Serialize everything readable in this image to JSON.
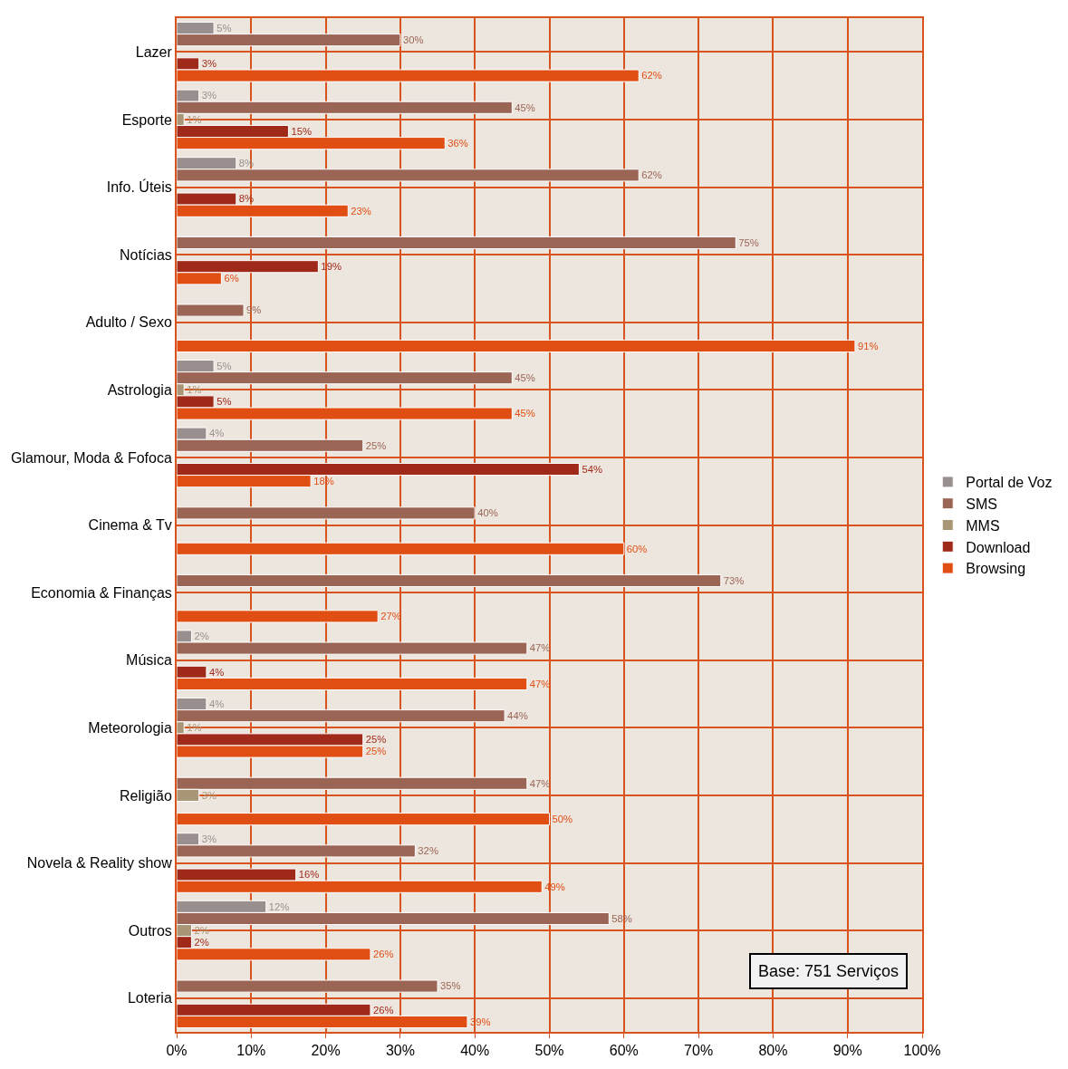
{
  "chart_data": {
    "type": "bar",
    "orientation": "horizontal",
    "categories": [
      "Lazer",
      "Esporte",
      "Info. Úteis",
      "Notícias",
      "Adulto / Sexo",
      "Astrologia",
      "Glamour, Moda & Fofoca",
      "Cinema & Tv",
      "Economia & Finanças",
      "Música",
      "Meteorologia",
      "Religião",
      "Novela & Reality show",
      "Outros",
      "Loteria"
    ],
    "series": [
      {
        "name": "Portal de Voz",
        "color": "#9a8f8f",
        "values": [
          5,
          3,
          8,
          null,
          null,
          5,
          4,
          null,
          null,
          2,
          4,
          null,
          3,
          12,
          null
        ],
        "value_labels": [
          "5%",
          "3%",
          "8%",
          null,
          null,
          "5%",
          "4%",
          null,
          null,
          "2%",
          "4%",
          null,
          "3%",
          "12%",
          null
        ]
      },
      {
        "name": "SMS",
        "color": "#9b6555",
        "values": [
          30,
          45,
          62,
          75,
          9,
          45,
          25,
          40,
          73,
          47,
          44,
          47,
          32,
          58,
          35
        ],
        "value_labels": [
          "30%",
          "45%",
          "62%",
          "75%",
          "9%",
          "45%",
          "25%",
          "40%",
          "73%",
          "47%",
          "44%",
          "47%",
          "32%",
          "58%",
          "35%"
        ]
      },
      {
        "name": "MMS",
        "color": "#a89677",
        "values": [
          null,
          1,
          null,
          null,
          null,
          1,
          null,
          null,
          null,
          null,
          1,
          3,
          null,
          2,
          null
        ],
        "value_labels": [
          null,
          "1%",
          null,
          null,
          null,
          "1%",
          null,
          null,
          null,
          null,
          "1%",
          "3%",
          null,
          "2%",
          null
        ]
      },
      {
        "name": "Download",
        "color": "#a02a1a",
        "values": [
          3,
          15,
          8,
          19,
          null,
          5,
          54,
          null,
          null,
          4,
          25,
          null,
          16,
          2,
          26
        ],
        "value_labels": [
          "3%",
          "15%",
          "8%",
          "19%",
          null,
          "5%",
          "54%",
          null,
          null,
          "4%",
          "25%",
          null,
          "16%",
          "2%",
          "26%"
        ]
      },
      {
        "name": "Browsing",
        "color": "#e04e14",
        "values": [
          62,
          36,
          23,
          6,
          91,
          45,
          18,
          60,
          27,
          47,
          25,
          50,
          49,
          26,
          39
        ],
        "value_labels": [
          "62%",
          "36%",
          "23%",
          "6%",
          "91%",
          "45%",
          "18%",
          "60%",
          "27%",
          "47%",
          "25%",
          "50%",
          "49%",
          "26%",
          "39%"
        ]
      }
    ],
    "xlim": [
      0,
      100
    ],
    "xticks": [
      {
        "value": 0,
        "label": "0%"
      },
      {
        "value": 10,
        "label": "10%"
      },
      {
        "value": 20,
        "label": "20%"
      },
      {
        "value": 30,
        "label": "30%"
      },
      {
        "value": 40,
        "label": "40%"
      },
      {
        "value": 50,
        "label": "50%"
      },
      {
        "value": 60,
        "label": "60%"
      },
      {
        "value": 70,
        "label": "70%"
      },
      {
        "value": 80,
        "label": "80%"
      },
      {
        "value": 90,
        "label": "90%"
      },
      {
        "value": 100,
        "label": "100%"
      }
    ],
    "grid": true,
    "legend": "right",
    "annotations": [
      "Base: 751 Serviços"
    ]
  }
}
